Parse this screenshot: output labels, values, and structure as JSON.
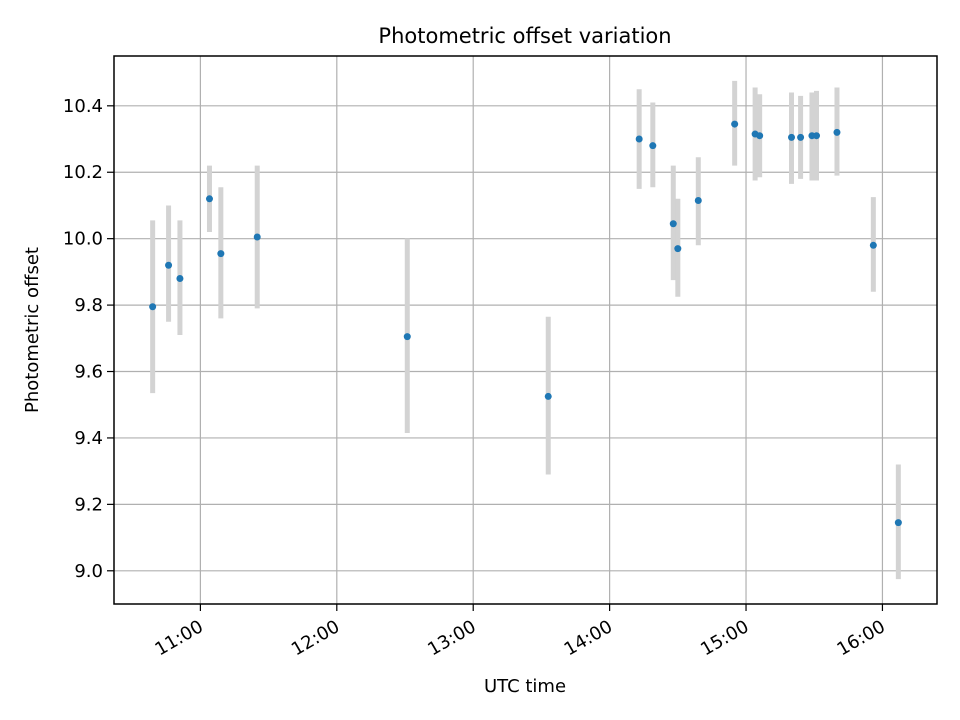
{
  "chart_data": {
    "type": "scatter",
    "title": "Photometric offset variation",
    "xlabel": "UTC time",
    "ylabel": "Photometric offset",
    "x_ticks": [
      "11:00",
      "12:00",
      "13:00",
      "14:00",
      "15:00",
      "16:00"
    ],
    "y_ticks": [
      "9.0",
      "9.2",
      "9.4",
      "9.6",
      "9.8",
      "10.0",
      "10.2",
      "10.4"
    ],
    "xlim": [
      "10:22",
      "16:24"
    ],
    "ylim": [
      8.9,
      10.55
    ],
    "grid": true,
    "series": [
      {
        "marker_color": "#1f77b4",
        "errorbar_color": "#d3d3d3",
        "points": [
          {
            "x": "10:39",
            "y": 9.795,
            "yerr_low": 9.535,
            "yerr_high": 10.055
          },
          {
            "x": "10:46",
            "y": 9.92,
            "yerr_low": 9.75,
            "yerr_high": 10.1
          },
          {
            "x": "10:51",
            "y": 9.88,
            "yerr_low": 9.71,
            "yerr_high": 10.055
          },
          {
            "x": "11:04",
            "y": 10.12,
            "yerr_low": 10.02,
            "yerr_high": 10.22
          },
          {
            "x": "11:09",
            "y": 9.955,
            "yerr_low": 9.76,
            "yerr_high": 10.155
          },
          {
            "x": "11:25",
            "y": 10.005,
            "yerr_low": 9.79,
            "yerr_high": 10.22
          },
          {
            "x": "12:31",
            "y": 9.705,
            "yerr_low": 9.415,
            "yerr_high": 10.0
          },
          {
            "x": "13:33",
            "y": 9.525,
            "yerr_low": 9.29,
            "yerr_high": 9.765
          },
          {
            "x": "14:13",
            "y": 10.3,
            "yerr_low": 10.15,
            "yerr_high": 10.45
          },
          {
            "x": "14:19",
            "y": 10.28,
            "yerr_low": 10.155,
            "yerr_high": 10.41
          },
          {
            "x": "14:28",
            "y": 10.045,
            "yerr_low": 9.875,
            "yerr_high": 10.22
          },
          {
            "x": "14:30",
            "y": 9.97,
            "yerr_low": 9.825,
            "yerr_high": 10.12
          },
          {
            "x": "14:39",
            "y": 10.115,
            "yerr_low": 9.98,
            "yerr_high": 10.245
          },
          {
            "x": "14:55",
            "y": 10.345,
            "yerr_low": 10.22,
            "yerr_high": 10.475
          },
          {
            "x": "15:04",
            "y": 10.315,
            "yerr_low": 10.175,
            "yerr_high": 10.455
          },
          {
            "x": "15:06",
            "y": 10.31,
            "yerr_low": 10.185,
            "yerr_high": 10.435
          },
          {
            "x": "15:20",
            "y": 10.305,
            "yerr_low": 10.165,
            "yerr_high": 10.44
          },
          {
            "x": "15:24",
            "y": 10.305,
            "yerr_low": 10.18,
            "yerr_high": 10.43
          },
          {
            "x": "15:29",
            "y": 10.31,
            "yerr_low": 10.175,
            "yerr_high": 10.44
          },
          {
            "x": "15:31",
            "y": 10.31,
            "yerr_low": 10.175,
            "yerr_high": 10.445
          },
          {
            "x": "15:40",
            "y": 10.32,
            "yerr_low": 10.19,
            "yerr_high": 10.455
          },
          {
            "x": "15:56",
            "y": 9.98,
            "yerr_low": 9.84,
            "yerr_high": 10.125
          },
          {
            "x": "16:07",
            "y": 9.145,
            "yerr_low": 8.975,
            "yerr_high": 9.32
          }
        ]
      }
    ]
  }
}
